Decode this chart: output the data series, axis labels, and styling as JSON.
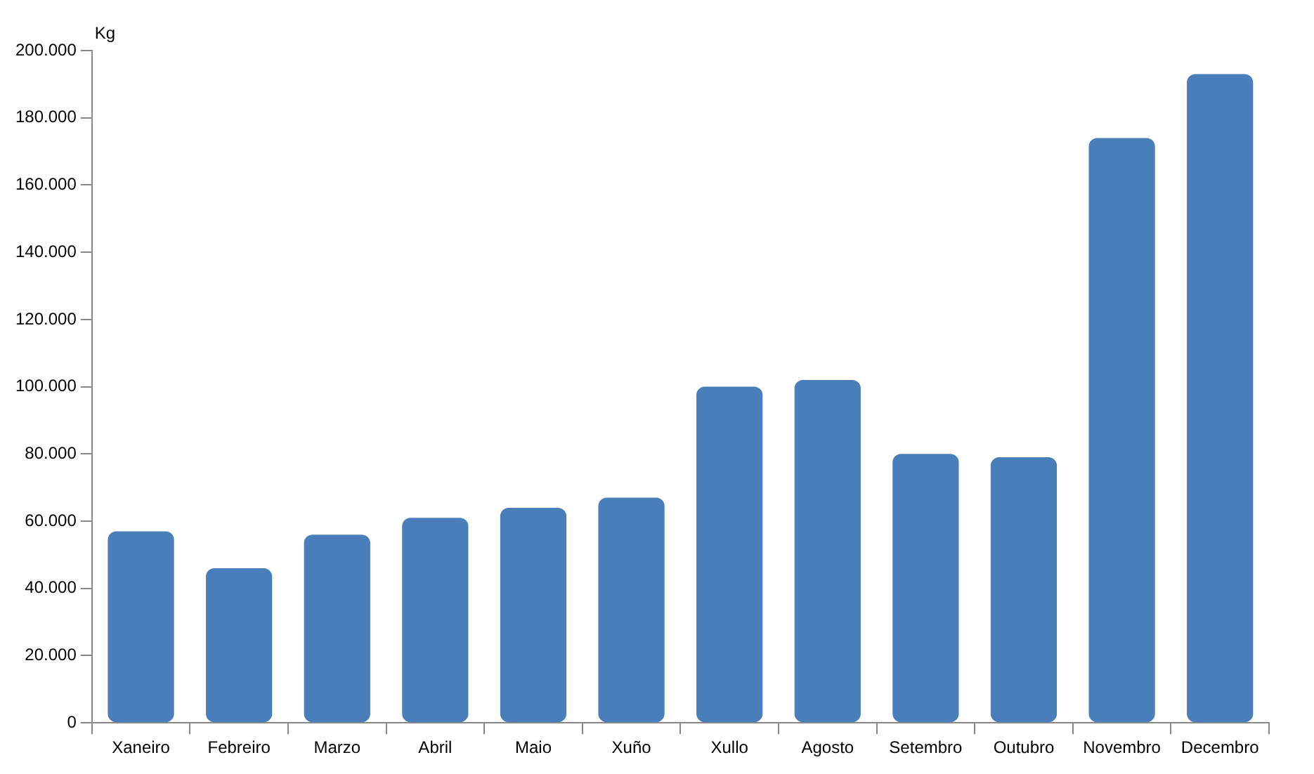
{
  "chart_data": {
    "type": "bar",
    "ylabel": "Kg",
    "categories": [
      "Xaneiro",
      "Febreiro",
      "Marzo",
      "Abril",
      "Maio",
      "Xuño",
      "Xullo",
      "Agosto",
      "Setembro",
      "Outubro",
      "Novembro",
      "Decembro"
    ],
    "values": [
      57000,
      46000,
      56000,
      61000,
      64000,
      67000,
      100000,
      102000,
      80000,
      79000,
      174000,
      193000
    ],
    "color": "#4a7ebb",
    "ylim": [
      0,
      200000
    ],
    "yticks": [
      0,
      {
        "value": 20000,
        "label": "20.000"
      },
      {
        "value": 40000,
        "label": "40.000"
      },
      {
        "value": 60000,
        "label": "60.000"
      },
      {
        "value": 80000,
        "label": "80.000"
      },
      {
        "value": 100000,
        "label": "100.000"
      },
      {
        "value": 120000,
        "label": "120.000"
      },
      {
        "value": 140000,
        "label": "140.000"
      },
      {
        "value": 160000,
        "label": "160.000"
      },
      {
        "value": 180000,
        "label": "180.000"
      },
      {
        "value": 200000,
        "label": "200.000"
      }
    ],
    "legend": false
  }
}
